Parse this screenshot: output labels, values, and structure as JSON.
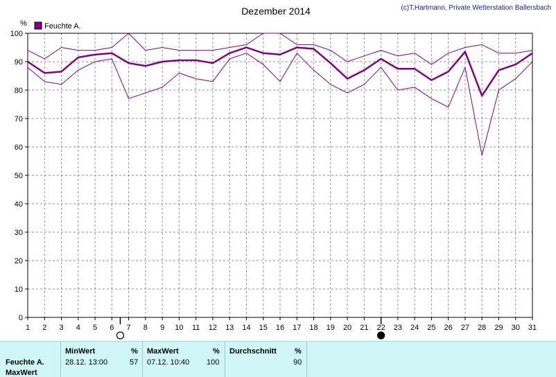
{
  "chart_data": {
    "type": "line",
    "title": "Dezember 2014",
    "copyright": "(c)T.Hartmann, Private Wetterstation Ballersbach",
    "unit": "%",
    "legend": {
      "label": "Feuchte A.",
      "color": "#800080",
      "position": "top-left"
    },
    "x": [
      1,
      2,
      3,
      4,
      5,
      6,
      7,
      8,
      9,
      10,
      11,
      12,
      13,
      14,
      15,
      16,
      17,
      18,
      19,
      20,
      21,
      22,
      23,
      24,
      25,
      26,
      27,
      28,
      29,
      30,
      31
    ],
    "xlim": [
      1,
      31
    ],
    "ylim": [
      0,
      100
    ],
    "yticks": [
      0,
      10,
      20,
      30,
      40,
      50,
      60,
      70,
      80,
      90,
      100
    ],
    "grid": true,
    "series": [
      {
        "role": "max",
        "color": "#800080",
        "width": 1,
        "values": [
          94,
          91,
          95,
          94,
          94,
          95,
          100,
          94,
          95,
          94,
          94,
          94,
          95,
          96,
          100,
          100,
          96,
          96,
          94,
          90,
          92,
          94,
          92,
          93,
          89,
          93,
          95,
          96,
          93,
          93,
          94
        ]
      },
      {
        "role": "avg",
        "color": "#800080",
        "width": 2.5,
        "values": [
          90,
          86,
          86.5,
          91.5,
          92.5,
          93,
          89.5,
          88.5,
          90,
          90.5,
          90.5,
          89.5,
          93,
          95,
          93,
          92.5,
          95,
          94.5,
          89.5,
          84,
          87,
          91,
          87.5,
          87.5,
          83.5,
          86.5,
          93.5,
          78,
          87,
          89,
          93
        ]
      },
      {
        "role": "min",
        "color": "#800080",
        "width": 1,
        "values": [
          88,
          83,
          82,
          87,
          90,
          91,
          77,
          79,
          81,
          86,
          84,
          83,
          91,
          93,
          89,
          83,
          93,
          87,
          82,
          79,
          82,
          88,
          80,
          81,
          77,
          74,
          88,
          57,
          80,
          84,
          90
        ]
      }
    ],
    "moon_phases": [
      {
        "day": 6.5,
        "phase": "full-moon-icon"
      },
      {
        "day": 22,
        "phase": "new-moon-icon"
      }
    ]
  },
  "stats": {
    "row_label": "Feuchte A.",
    "row_sub": "MaxWert",
    "min": {
      "header": "MinWert",
      "unit": "%",
      "datetime": "28.12.  13:00",
      "value": "57"
    },
    "max": {
      "header": "MaxWert",
      "unit": "%",
      "datetime": "07.12.  10:40",
      "value": "100"
    },
    "avg": {
      "header": "Durchschnitt",
      "unit": "%",
      "value": "90"
    }
  }
}
